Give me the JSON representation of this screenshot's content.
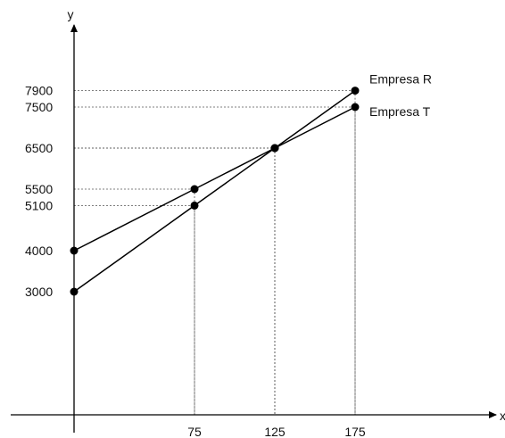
{
  "chart_data": {
    "type": "line",
    "xlabel": "x",
    "ylabel": "y",
    "x_ticks": [
      75,
      125,
      175
    ],
    "y_ticks": [
      3000,
      4000,
      5100,
      5500,
      6500,
      7500,
      7900
    ],
    "series": [
      {
        "name": "Empresa R",
        "x": [
          0,
          75,
          125,
          175
        ],
        "y": [
          3000,
          5100,
          6500,
          7900
        ]
      },
      {
        "name": "Empresa T",
        "x": [
          0,
          75,
          125,
          175
        ],
        "y": [
          4000,
          5500,
          6500,
          7500
        ]
      }
    ],
    "grid": "dotted-guides-to-points",
    "legend": "inline-labels-right-of-line-ends"
  }
}
